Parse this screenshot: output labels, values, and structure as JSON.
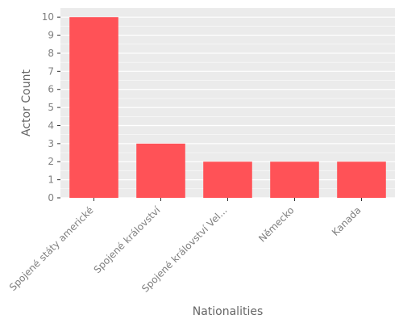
{
  "chart_data": {
    "type": "bar",
    "categories": [
      "Spojené státy americké",
      "Spojené království",
      "Spojené království Vel...",
      "Německo",
      "Kanada"
    ],
    "values": [
      10,
      3,
      2,
      2,
      2
    ],
    "xlabel": "Nationalities",
    "ylabel": "Actor Count",
    "ylim": [
      0,
      10.5
    ],
    "yticks": [
      0,
      1,
      2,
      3,
      4,
      5,
      6,
      7,
      8,
      9,
      10
    ],
    "grid": true,
    "colors": {
      "bar": "#ff5257",
      "panel": "#ebebeb",
      "grid": "#ffffff",
      "text": "#7f7f7f",
      "title": "#666666"
    }
  }
}
